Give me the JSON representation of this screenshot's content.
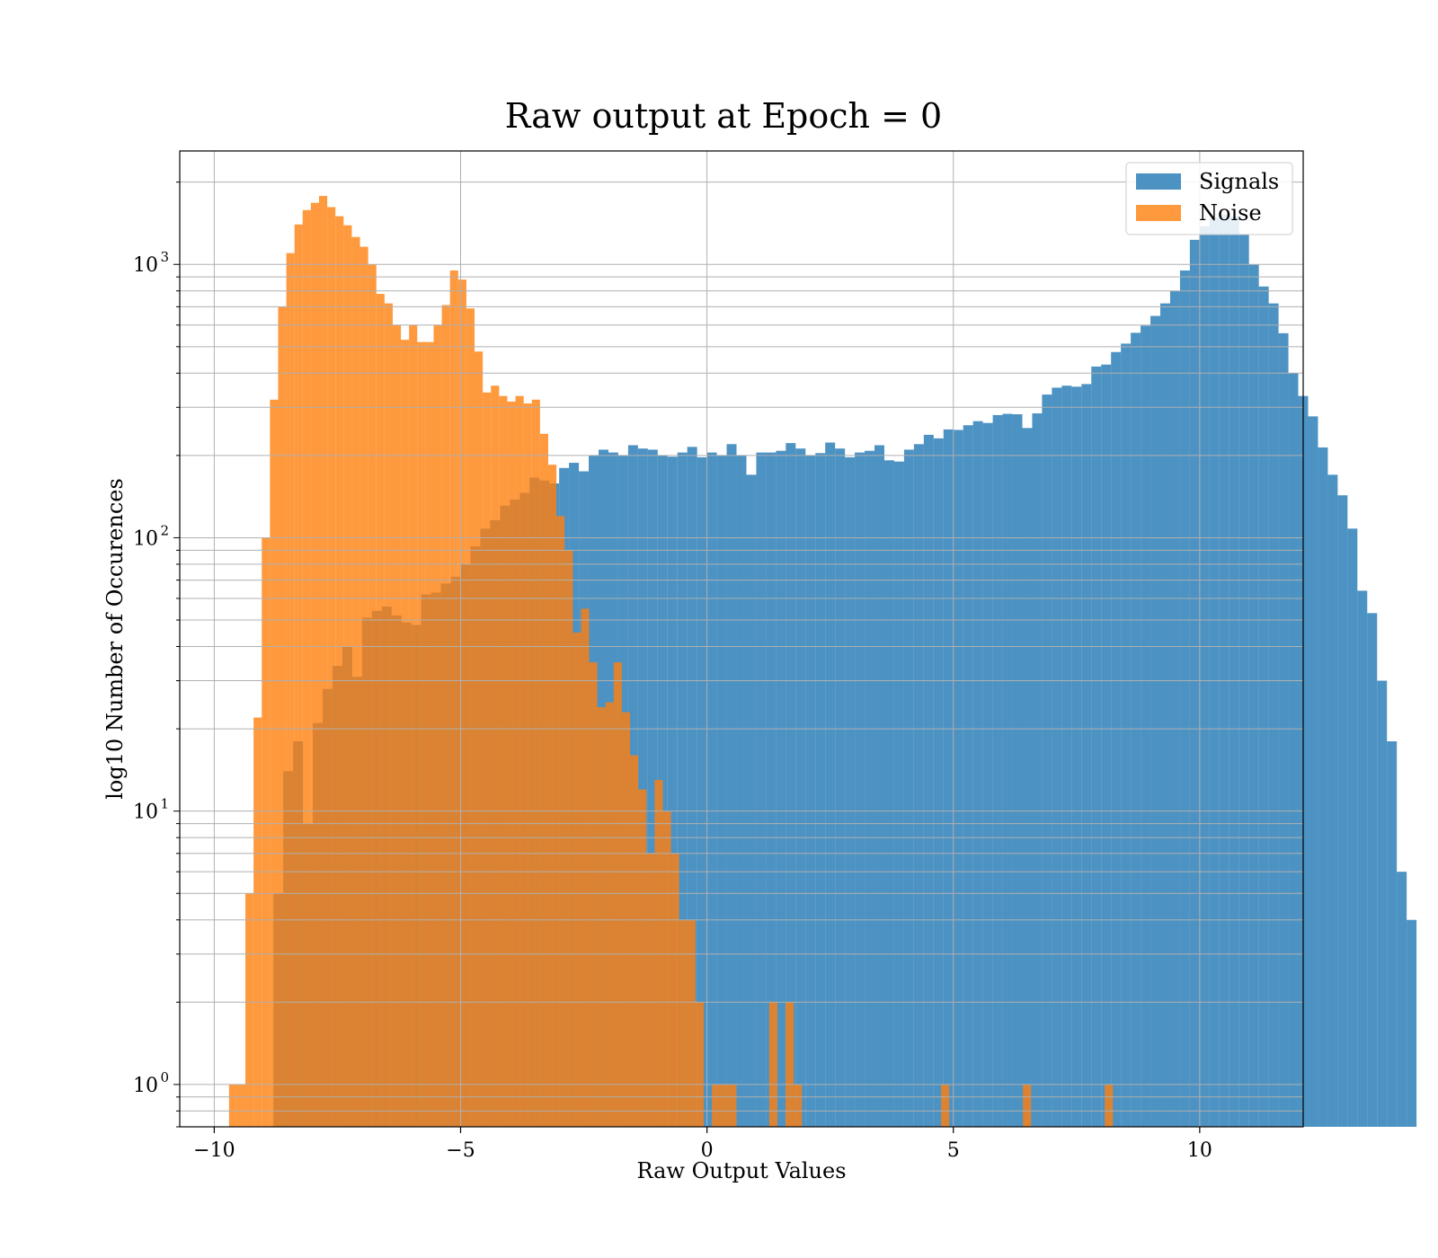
{
  "chart_data": {
    "type": "bar",
    "title": "Raw output at Epoch = 0",
    "xlabel": "Raw Output Values",
    "ylabel": "log10 Number of Occurences",
    "xlim": [
      -10.7,
      12.1
    ],
    "ylim": [
      0.7,
      2600
    ],
    "yscale": "log",
    "grid": true,
    "legend_position": "top-right",
    "x_ticks": [
      {
        "value": -10,
        "label": "−10"
      },
      {
        "value": -5,
        "label": "−5"
      },
      {
        "value": 0,
        "label": "0"
      },
      {
        "value": 5,
        "label": "5"
      },
      {
        "value": 10,
        "label": "10"
      }
    ],
    "y_ticks": [
      {
        "value": 1,
        "base": "10",
        "exp": "0"
      },
      {
        "value": 10,
        "base": "10",
        "exp": "1"
      },
      {
        "value": 100,
        "base": "10",
        "exp": "2"
      },
      {
        "value": 1000,
        "base": "10",
        "exp": "3"
      }
    ],
    "series": [
      {
        "name": "Signals",
        "color": "#1f77b4",
        "opacity": 0.8,
        "bin_start": -8.8,
        "bin_width": 0.2,
        "values": [
          5,
          14,
          18,
          9,
          21,
          28,
          34,
          40,
          31,
          51,
          54,
          56,
          52,
          49,
          48,
          62,
          63,
          68,
          72,
          80,
          93,
          108,
          116,
          131,
          138,
          146,
          166,
          162,
          158,
          180,
          188,
          175,
          200,
          210,
          205,
          200,
          218,
          212,
          210,
          200,
          198,
          205,
          215,
          197,
          205,
          200,
          220,
          200,
          170,
          205,
          205,
          208,
          222,
          212,
          200,
          204,
          223,
          212,
          197,
          205,
          208,
          218,
          192,
          190,
          210,
          220,
          238,
          231,
          249,
          248,
          258,
          267,
          263,
          281,
          284,
          283,
          252,
          285,
          334,
          354,
          360,
          357,
          365,
          423,
          430,
          478,
          513,
          562,
          597,
          648,
          720,
          800,
          950,
          1230,
          1380,
          1480,
          1520,
          1500,
          1290,
          1000,
          830,
          720,
          560,
          400,
          330,
          278,
          214,
          170,
          143,
          108,
          64,
          53,
          30,
          18,
          6,
          4
        ]
      },
      {
        "name": "Noise",
        "color": "#ff7f0e",
        "opacity": 0.8,
        "bin_start": -9.7,
        "bin_width": 0.1661,
        "values": [
          1,
          1,
          5,
          22,
          100,
          320,
          700,
          1100,
          1400,
          1580,
          1680,
          1780,
          1620,
          1500,
          1390,
          1260,
          1160,
          1000,
          780,
          720,
          600,
          530,
          600,
          520,
          520,
          600,
          710,
          950,
          880,
          690,
          480,
          340,
          360,
          330,
          315,
          330,
          310,
          320,
          240,
          185,
          120,
          90,
          45,
          55,
          35,
          24,
          25,
          35,
          23,
          16,
          12,
          7,
          13,
          10,
          7,
          4,
          4,
          2,
          0,
          1,
          1,
          1,
          0,
          0,
          0,
          0,
          2,
          0,
          2,
          1,
          0,
          0,
          0,
          0,
          0,
          0,
          0,
          0,
          0,
          0,
          0,
          0,
          0,
          0,
          0,
          0,
          0,
          1,
          0,
          0,
          0,
          0,
          0,
          0,
          0,
          0,
          0,
          1,
          0,
          0,
          0,
          0,
          0,
          0,
          0,
          0,
          0,
          1
        ]
      }
    ]
  }
}
